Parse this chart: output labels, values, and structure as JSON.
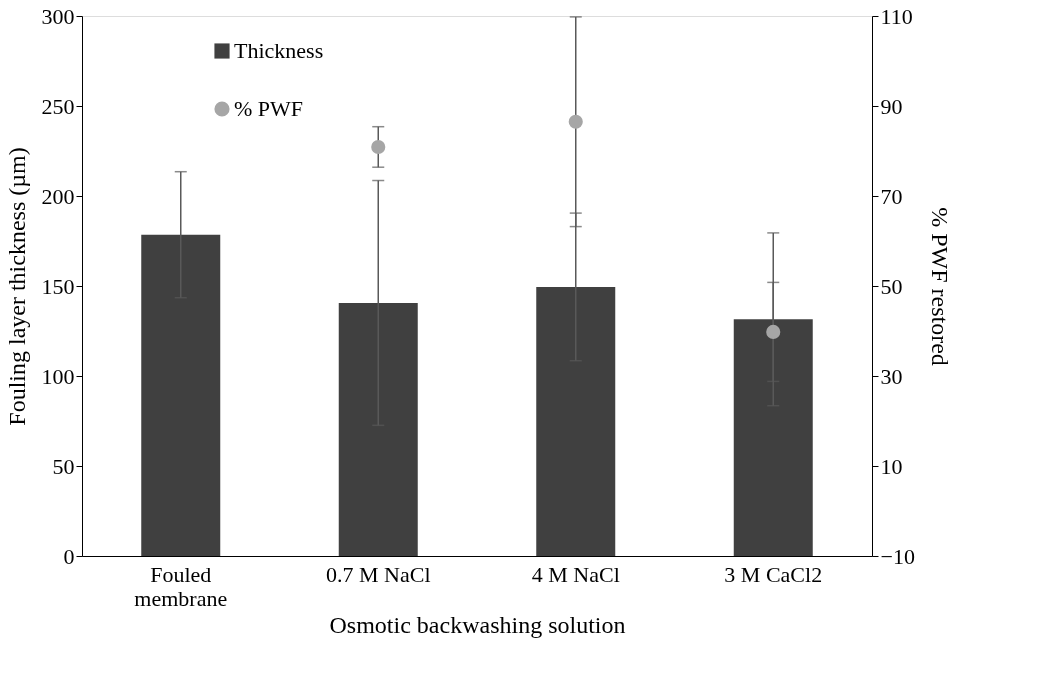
{
  "chart_data": {
    "type": "bar",
    "xlabel": "Osmotic backwashing solution",
    "ylabel": "Fouling layer thickness (µm)",
    "y2label": "% PWF restored",
    "categories": [
      "Fouled membrane",
      "0.7 M NaCl",
      "4 M NaCl",
      "3 M CaCl2"
    ],
    "series": [
      {
        "name": "Thickness",
        "color": "#404040",
        "values": [
          178.5,
          140.6,
          149.5,
          131.5
        ],
        "errors": [
          35,
          68,
          41,
          48
        ]
      },
      {
        "name": "% PWF",
        "type": "scatter",
        "axis": "y2",
        "color": "#a6a6a6",
        "values": [
          null,
          80.9,
          86.5,
          39.8
        ],
        "errors": [
          null,
          4.5,
          23.3,
          11
        ]
      }
    ],
    "ylim": [
      0,
      300
    ],
    "yticks": [
      0,
      50,
      100,
      150,
      200,
      250,
      300
    ],
    "y2lim": [
      -10,
      110
    ],
    "y2ticks": [
      -10,
      10,
      30,
      50,
      70,
      90,
      110
    ],
    "grid": false,
    "legend": "top left",
    "marker": "circle"
  }
}
